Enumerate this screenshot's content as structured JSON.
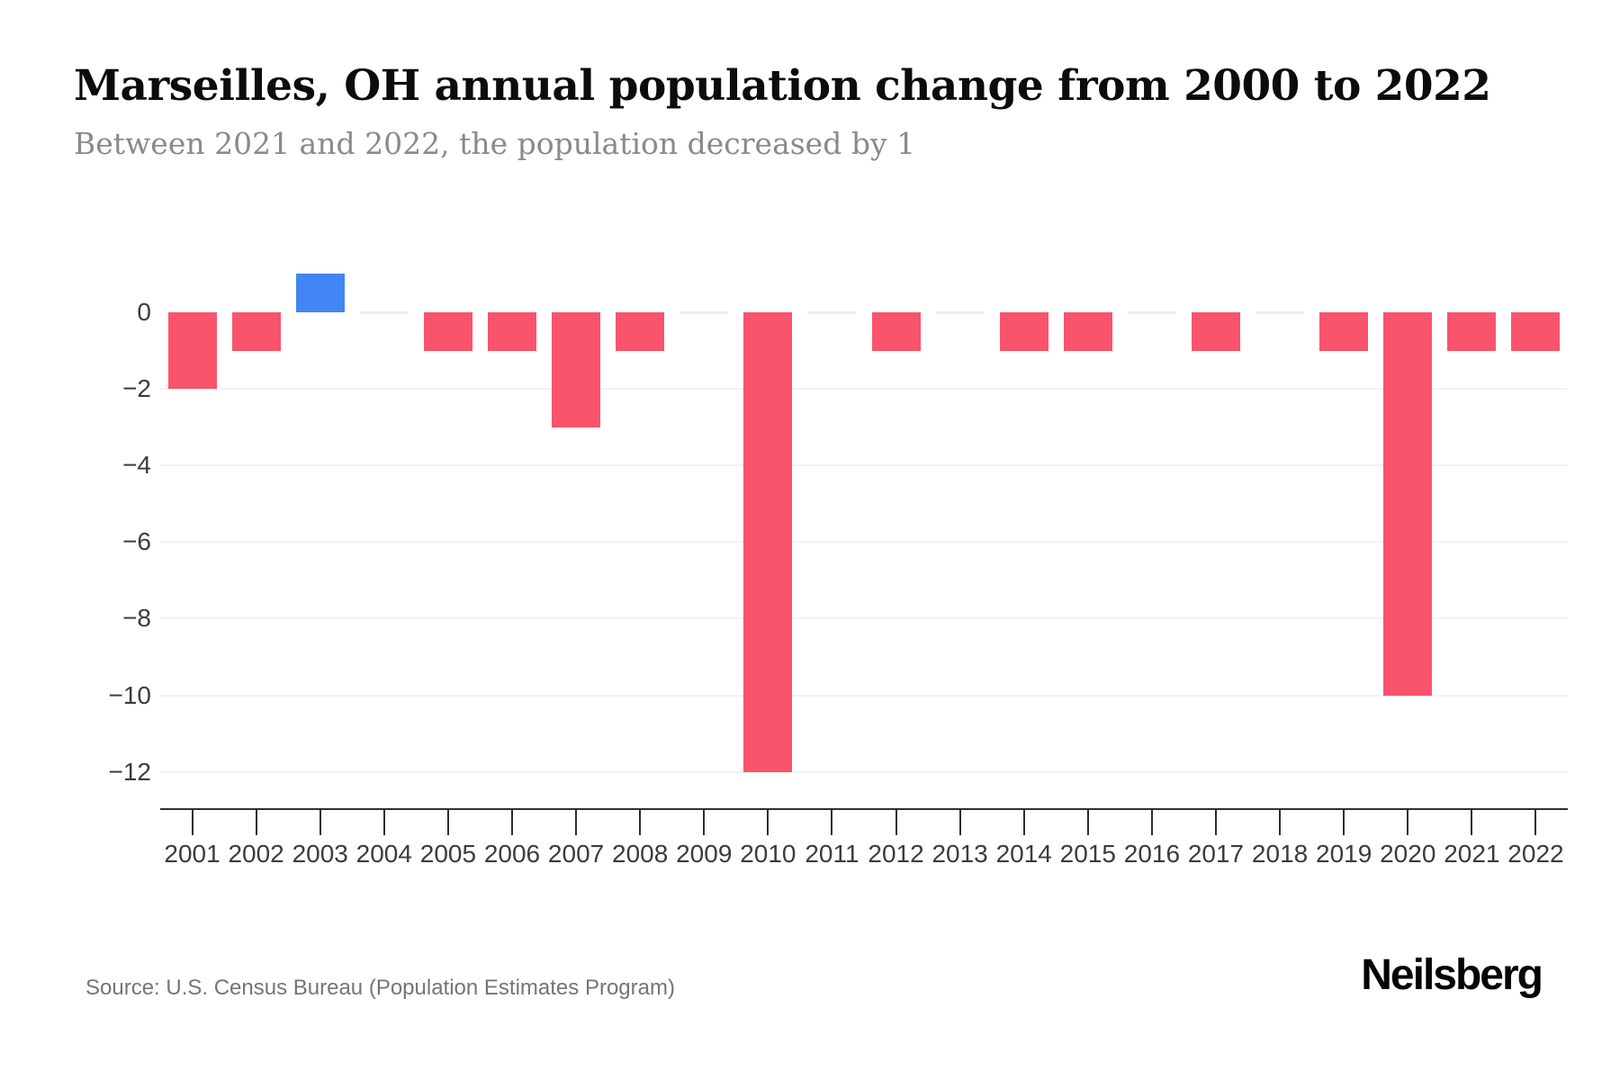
{
  "page": {
    "title": "Marseilles, OH annual population change from 2000 to 2022",
    "subtitle": "Between 2021 and 2022, the population decreased by 1",
    "source": "Source: U.S. Census Bureau (Population Estimates Program)",
    "brand": "Neilsberg"
  },
  "colors": {
    "negative": "#f9546b",
    "positive": "#4285f4",
    "zero": "#ededed",
    "gridline": "#f2f2f4",
    "axis": "#2f2f2f",
    "tick_label": "#3c3c3c",
    "title": "#0c0c0c",
    "subtitle": "#8a8a8a",
    "source": "#757575"
  },
  "chart_data": {
    "type": "bar",
    "title": "Marseilles, OH annual population change from 2000 to 2022",
    "subtitle": "Between 2021 and 2022, the population decreased by 1",
    "categories": [
      "2001",
      "2002",
      "2003",
      "2004",
      "2005",
      "2006",
      "2007",
      "2008",
      "2009",
      "2010",
      "2011",
      "2012",
      "2013",
      "2014",
      "2015",
      "2016",
      "2017",
      "2018",
      "2019",
      "2020",
      "2021",
      "2022"
    ],
    "values": [
      -2,
      -1,
      1,
      0,
      -1,
      -1,
      -3,
      -1,
      0,
      -12,
      0,
      -1,
      0,
      -1,
      -1,
      0,
      -1,
      0,
      -1,
      -10,
      -1,
      -1
    ],
    "xlabel": "",
    "ylabel": "",
    "y_ticks": [
      0,
      -2,
      -4,
      -6,
      -8,
      -10,
      -12
    ],
    "y_tick_labels": [
      "0",
      "−2",
      "−4",
      "−6",
      "−8",
      "−10",
      "−12"
    ],
    "ylim": [
      -12.9,
      1.4
    ],
    "grid": "horizontal-light",
    "legend": "none"
  }
}
